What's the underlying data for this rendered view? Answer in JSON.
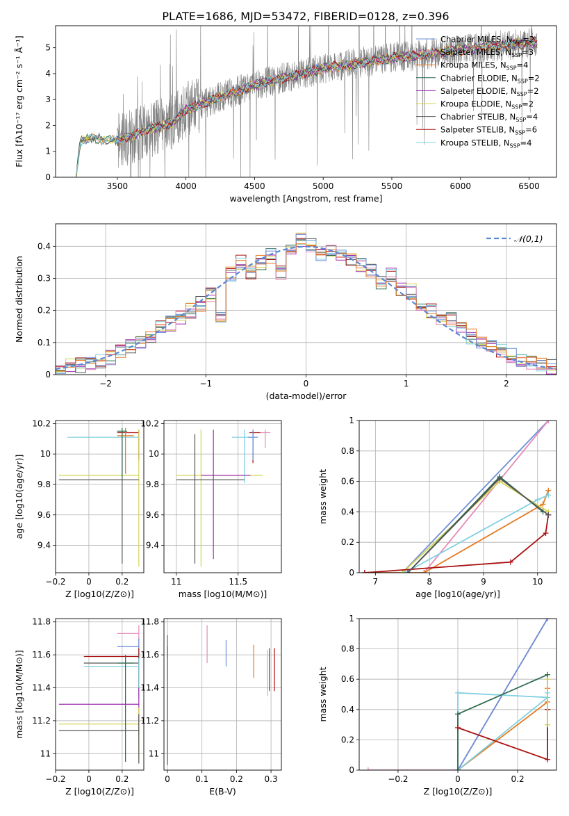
{
  "figure_title": "PLATE=1686, MJD=53472, FIBERID=0128, z=0.396",
  "series_colors": [
    "#2e6b4f",
    "#9b30b0",
    "#d4d450",
    "#555555",
    "#aa1111",
    "#7fd0e0",
    "#e68ab8",
    "#6b8fd6",
    "#e67a22"
  ],
  "chart_data": [
    {
      "id": "spectrum",
      "type": "line",
      "xlabel": "wavelength [Angstrom, rest frame]",
      "ylabel": "Flux [fλ10⁻¹⁷ erg cm⁻² s⁻¹ Å⁻¹]",
      "xlim": [
        3050,
        6700
      ],
      "ylim": [
        0,
        5.85
      ],
      "xticks": [
        3500,
        4000,
        4500,
        5000,
        5500,
        6000,
        6500
      ],
      "yticks": [
        0,
        1,
        2,
        3,
        4,
        5
      ],
      "data_trend": {
        "x": [
          3200,
          3230,
          3300,
          3500,
          3700,
          3900,
          4000,
          4300,
          4600,
          5000,
          5500,
          6000,
          6500
        ],
        "y": [
          0,
          1.4,
          1.5,
          1.4,
          1.8,
          2.1,
          2.6,
          3.2,
          3.7,
          4.2,
          4.6,
          4.9,
          5.2
        ]
      },
      "legend": [
        "Chabrier MILES, N_SSP=2",
        "Salpeter MILES, N_SSP=3",
        "Kroupa MILES, N_SSP=4",
        "Chabrier ELODIE, N_SSP=2",
        "Salpeter ELODIE, N_SSP=2",
        "Kroupa ELODIE, N_SSP=2",
        "Chabrier STELIB, N_SSP=4",
        "Salpeter STELIB, N_SSP=6",
        "Kroupa STELIB, N_SSP=4"
      ],
      "legend_colors": [
        "#6b8fd6",
        "#e68ab8",
        "#e67a22",
        "#2e6b4f",
        "#9b30b0",
        "#d4d450",
        "#555555",
        "#aa1111",
        "#7fd0e0"
      ],
      "legend_placement": "right",
      "grid": false
    },
    {
      "id": "residual-hist",
      "type": "line",
      "xlabel": "(data-model)/error",
      "ylabel": "Normed distribution",
      "xlim": [
        -2.5,
        2.5
      ],
      "ylim": [
        0,
        0.47
      ],
      "xticks": [
        -2,
        -1,
        0,
        1,
        2
      ],
      "yticks": [
        0.0,
        0.1,
        0.2,
        0.3,
        0.4
      ],
      "grid": true,
      "legend": [
        "𝒩(0,1)"
      ],
      "legend_placement": "top-right",
      "hist_x": [
        -2.5,
        -2.4,
        -2.3,
        -2.2,
        -2.1,
        -2.0,
        -1.9,
        -1.8,
        -1.7,
        -1.6,
        -1.5,
        -1.4,
        -1.3,
        -1.2,
        -1.1,
        -1.0,
        -0.9,
        -0.8,
        -0.7,
        -0.6,
        -0.5,
        -0.4,
        -0.3,
        -0.2,
        -0.1,
        0.0,
        0.1,
        0.2,
        0.3,
        0.4,
        0.5,
        0.6,
        0.7,
        0.8,
        0.9,
        1.0,
        1.1,
        1.2,
        1.3,
        1.4,
        1.5,
        1.6,
        1.7,
        1.8,
        1.9,
        2.0,
        2.1,
        2.2,
        2.3,
        2.4
      ],
      "hist_base": [
        0.02,
        0.025,
        0.03,
        0.035,
        0.045,
        0.055,
        0.07,
        0.09,
        0.105,
        0.12,
        0.15,
        0.16,
        0.18,
        0.2,
        0.22,
        0.25,
        0.18,
        0.31,
        0.35,
        0.32,
        0.35,
        0.37,
        0.32,
        0.38,
        0.42,
        0.4,
        0.38,
        0.39,
        0.37,
        0.36,
        0.34,
        0.32,
        0.29,
        0.31,
        0.27,
        0.26,
        0.22,
        0.2,
        0.18,
        0.17,
        0.15,
        0.12,
        0.1,
        0.09,
        0.07,
        0.06,
        0.045,
        0.035,
        0.03,
        0.025
      ],
      "gauss_mu": 0,
      "gauss_sigma": 1
    },
    {
      "id": "age-vs-Z",
      "type": "scatter",
      "xlabel": "Z [log10(Z/Z⊙)]",
      "ylabel": "age [log10(age/yr)]",
      "xlim": [
        -0.2,
        0.33
      ],
      "ylim": [
        9.22,
        10.22
      ],
      "xticks": [
        -0.2,
        0.0,
        0.2
      ],
      "yticks": [
        9.4,
        9.6,
        9.8,
        10.0,
        10.2
      ],
      "grid": true,
      "crosses": [
        {
          "x": 0.3,
          "y": 10.14,
          "xerr": [
            0.13,
            0.0
          ],
          "yerr": [
            0.18,
            0.02
          ],
          "color": "#aa1111"
        },
        {
          "x": 0.2,
          "y": 10.11,
          "xerr": [
            0.33,
            0.1
          ],
          "yerr": [
            0.2,
            0.05
          ],
          "color": "#7fd0e0"
        },
        {
          "x": 0.3,
          "y": 9.86,
          "xerr": [
            0.48,
            0.0
          ],
          "yerr": [
            0.6,
            0.3
          ],
          "color": "#d4d450"
        },
        {
          "x": 0.2,
          "y": 9.83,
          "xerr": [
            0.38,
            0.1
          ],
          "yerr": [
            0.55,
            0.3
          ],
          "color": "#555555"
        },
        {
          "x": 0.22,
          "y": 10.12,
          "xerr": [
            0.05,
            0.05
          ],
          "yerr": [
            0.25,
            0.05
          ],
          "color": "#e67a22"
        },
        {
          "x": 0.2,
          "y": 10.15,
          "xerr": [
            0.03,
            0.03
          ],
          "yerr": [
            0.3,
            0.02
          ],
          "color": "#2e6b4f"
        }
      ]
    },
    {
      "id": "age-vs-mass",
      "type": "scatter",
      "xlabel": "mass [log10(M/M⊙)]",
      "ylabel": "",
      "xlim": [
        10.9,
        11.85
      ],
      "ylim": [
        9.22,
        10.22
      ],
      "xticks": [
        11.0,
        11.5
      ],
      "yticks": [
        9.4,
        9.6,
        9.8,
        10.0,
        10.2
      ],
      "grid": true,
      "crosses": [
        {
          "x": 11.62,
          "y": 10.14,
          "xerr": [
            0.03,
            0.06
          ],
          "yerr": [
            0.2,
            0.02
          ],
          "color": "#aa1111"
        },
        {
          "x": 11.55,
          "y": 10.11,
          "xerr": [
            0.1,
            0.1
          ],
          "yerr": [
            0.3,
            0.05
          ],
          "color": "#7fd0e0"
        },
        {
          "x": 11.2,
          "y": 9.86,
          "xerr": [
            0.2,
            0.5
          ],
          "yerr": [
            0.6,
            0.3
          ],
          "color": "#d4d450"
        },
        {
          "x": 11.15,
          "y": 9.83,
          "xerr": [
            0.15,
            0.4
          ],
          "yerr": [
            0.55,
            0.3
          ],
          "color": "#555555"
        },
        {
          "x": 11.3,
          "y": 9.86,
          "xerr": [
            0.1,
            0.3
          ],
          "yerr": [
            0.55,
            0.3
          ],
          "color": "#9b30b0"
        },
        {
          "x": 11.72,
          "y": 10.14,
          "xerr": [
            0.04,
            0.04
          ],
          "yerr": [
            0.1,
            0.02
          ],
          "color": "#e68ab8"
        },
        {
          "x": 11.62,
          "y": 10.11,
          "xerr": [
            0.04,
            0.04
          ],
          "yerr": [
            0.15,
            0.05
          ],
          "color": "#6b8fd6"
        }
      ]
    },
    {
      "id": "massweight-vs-age",
      "type": "line",
      "xlabel": "age [log10(age/yr)]",
      "ylabel": "mass weight",
      "xlim": [
        6.7,
        10.35
      ],
      "ylim": [
        0,
        1
      ],
      "xticks": [
        7,
        8,
        9,
        10
      ],
      "yticks": [
        0.0,
        0.2,
        0.4,
        0.6,
        0.8,
        1.0
      ],
      "grid": true,
      "series": [
        {
          "x": [
            6.8,
            7.5,
            10.2
          ],
          "y": [
            0,
            0,
            1.0
          ],
          "color": "#6b8fd6"
        },
        {
          "x": [
            7.9,
            10.2
          ],
          "y": [
            0,
            1.0
          ],
          "color": "#e68ab8"
        },
        {
          "x": [
            6.8,
            7.9,
            10.1,
            10.2
          ],
          "y": [
            0,
            0,
            0.45,
            0.54
          ],
          "color": "#e67a22"
        },
        {
          "x": [
            7.5,
            9.3,
            10.2
          ],
          "y": [
            0,
            0.6,
            0.4
          ],
          "color": "#d4d450"
        },
        {
          "x": [
            7.6,
            9.3,
            10.1
          ],
          "y": [
            0,
            0.63,
            0.4
          ],
          "color": "#2e6b4f"
        },
        {
          "x": [
            7.55,
            10.0,
            10.2
          ],
          "y": [
            0,
            0.48,
            0.51
          ],
          "color": "#7fd0e0"
        },
        {
          "x": [
            6.8,
            9.5,
            10.15,
            10.2
          ],
          "y": [
            0,
            0.07,
            0.26,
            0.38
          ],
          "color": "#aa1111"
        },
        {
          "x": [
            7.6,
            9.3,
            10.2
          ],
          "y": [
            0,
            0.62,
            0.38
          ],
          "color": "#555555"
        }
      ]
    },
    {
      "id": "mass-vs-Z",
      "type": "scatter",
      "xlabel": "Z [log10(Z/Z⊙)]",
      "ylabel": "mass [log10(M/M⊙)]",
      "xlim": [
        -0.2,
        0.33
      ],
      "ylim": [
        10.9,
        11.82
      ],
      "xticks": [
        -0.2,
        0.0,
        0.2
      ],
      "yticks": [
        11.0,
        11.2,
        11.4,
        11.6,
        11.8
      ],
      "grid": true,
      "crosses": [
        {
          "x": 0.3,
          "y": 11.73,
          "xerr": [
            0.13,
            0.0
          ],
          "yerr": [
            0.1,
            0.05
          ],
          "color": "#e68ab8"
        },
        {
          "x": 0.3,
          "y": 11.65,
          "xerr": [
            0.13,
            0.0
          ],
          "yerr": [
            0.1,
            0.05
          ],
          "color": "#6b8fd6"
        },
        {
          "x": 0.3,
          "y": 11.59,
          "xerr": [
            0.33,
            0.0
          ],
          "yerr": [
            0.2,
            0.05
          ],
          "color": "#aa1111"
        },
        {
          "x": 0.3,
          "y": 11.55,
          "xerr": [
            0.33,
            0.0
          ],
          "yerr": [
            0.2,
            0.05
          ],
          "color": "#555555"
        },
        {
          "x": 0.3,
          "y": 11.53,
          "xerr": [
            0.33,
            0.0
          ],
          "yerr": [
            0.2,
            0.05
          ],
          "color": "#7fd0e0"
        },
        {
          "x": 0.3,
          "y": 11.3,
          "xerr": [
            0.48,
            0.0
          ],
          "yerr": [
            0.2,
            0.1
          ],
          "color": "#9b30b0"
        },
        {
          "x": 0.3,
          "y": 11.18,
          "xerr": [
            0.48,
            0.0
          ],
          "yerr": [
            0.2,
            0.1
          ],
          "color": "#d4d450"
        },
        {
          "x": 0.3,
          "y": 11.14,
          "xerr": [
            0.48,
            0.0
          ],
          "yerr": [
            0.2,
            0.1
          ],
          "color": "#555555"
        },
        {
          "x": 0.22,
          "y": 11.55,
          "xerr": [
            0.05,
            0.05
          ],
          "yerr": [
            0.6,
            0.05
          ],
          "color": "#2e6b4f"
        }
      ]
    },
    {
      "id": "mass-vs-EBV",
      "type": "scatter",
      "xlabel": "E(B-V)",
      "ylabel": "",
      "xlim": [
        -0.01,
        0.33
      ],
      "ylim": [
        10.9,
        11.82
      ],
      "xticks": [
        0.0,
        0.1,
        0.2,
        0.3
      ],
      "yticks": [
        11.0,
        11.2,
        11.4,
        11.6,
        11.8
      ],
      "grid": true,
      "bars": [
        {
          "x": 0.0,
          "y0": 11.58,
          "y1": 11.72,
          "color": "#9b30b0"
        },
        {
          "x": 0.0,
          "y0": 10.95,
          "y1": 11.6,
          "color": "#d4d450"
        },
        {
          "x": 0.0,
          "y0": 10.93,
          "y1": 11.65,
          "color": "#2e6b4f"
        },
        {
          "x": 0.115,
          "y0": 11.55,
          "y1": 11.78,
          "color": "#e68ab8"
        },
        {
          "x": 0.17,
          "y0": 11.53,
          "y1": 11.69,
          "color": "#6b8fd6"
        },
        {
          "x": 0.25,
          "y0": 11.46,
          "y1": 11.66,
          "color": "#e67a22"
        },
        {
          "x": 0.29,
          "y0": 11.35,
          "y1": 11.63,
          "color": "#7fd0e0"
        },
        {
          "x": 0.295,
          "y0": 11.38,
          "y1": 11.64,
          "color": "#555555"
        },
        {
          "x": 0.31,
          "y0": 11.38,
          "y1": 11.64,
          "color": "#aa1111"
        }
      ]
    },
    {
      "id": "massweight-vs-Z",
      "type": "line",
      "xlabel": "Z [log10(Z/Z⊙)]",
      "ylabel": "mass weight",
      "xlim": [
        -0.33,
        0.33
      ],
      "ylim": [
        0,
        1
      ],
      "xticks": [
        -0.2,
        0.0,
        0.2
      ],
      "yticks": [
        0.0,
        0.2,
        0.4,
        0.6,
        0.8,
        1.0
      ],
      "grid": true,
      "series": [
        {
          "x": [
            -0.3,
            0.0,
            0.3
          ],
          "y": [
            0,
            0,
            1.0
          ],
          "color": "#e68ab8"
        },
        {
          "x": [
            0.0,
            0.3
          ],
          "y": [
            0,
            1.0
          ],
          "color": "#6b8fd6"
        },
        {
          "x": [
            0.0,
            0.3,
            0.3
          ],
          "y": [
            0,
            0.45,
            0.54
          ],
          "color": "#e67a22"
        },
        {
          "x": [
            0.0,
            0.3,
            0.3
          ],
          "y": [
            0,
            0.48,
            0.51
          ],
          "color": "#7fd0e0"
        },
        {
          "x": [
            0.0,
            0.0,
            0.3
          ],
          "y": [
            0,
            0.51,
            0.48
          ],
          "color": "#7fd0e0"
        },
        {
          "x": [
            0.0,
            0.0,
            0.3,
            0.3
          ],
          "y": [
            0,
            0.37,
            0.63,
            0.4
          ],
          "color": "#2e6b4f"
        },
        {
          "x": [
            0.0,
            0.3,
            0.3
          ],
          "y": [
            0.28,
            0.07,
            0.4
          ],
          "color": "#aa1111"
        },
        {
          "x": [
            0.3,
            0.3
          ],
          "y": [
            0.3,
            0.6
          ],
          "color": "#d4d450"
        }
      ]
    }
  ]
}
